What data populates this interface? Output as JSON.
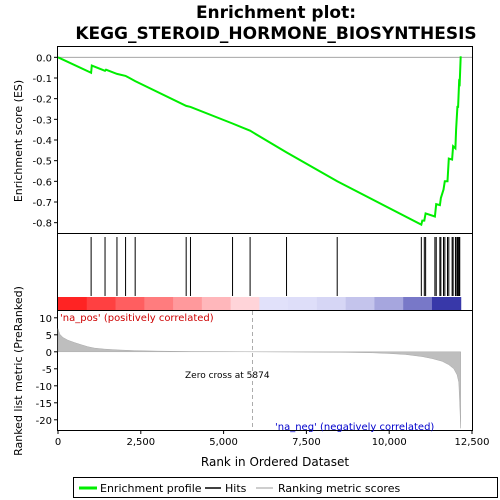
{
  "chart_data": {
    "title": "Enrichment plot:\nKEGG_STEROID_HORMONE_BIOSYNTHESIS",
    "type": "line",
    "panels": {
      "enrichment": {
        "ylabel": "Enrichment score (ES)",
        "ylim": [
          -0.85,
          0.05
        ],
        "yticks": [
          0.0,
          -0.1,
          -0.2,
          -0.3,
          -0.4,
          -0.5,
          -0.6,
          -0.7,
          -0.8
        ],
        "series": [
          {
            "name": "Enrichment profile",
            "color": "#00ee00",
            "x": [
              0,
              1000,
              1020,
              1420,
              1450,
              1780,
              2040,
              2330,
              3870,
              4000,
              5270,
              5800,
              6900,
              8430,
              10970,
              11000,
              11060,
              11100,
              11380,
              11420,
              11530,
              11560,
              11640,
              11680,
              11760,
              11800,
              11900,
              11930,
              12000,
              12020,
              12060,
              12080,
              12110,
              12130,
              12160
            ],
            "y": [
              0.0,
              -0.075,
              -0.04,
              -0.065,
              -0.06,
              -0.08,
              -0.09,
              -0.115,
              -0.235,
              -0.24,
              -0.32,
              -0.355,
              -0.46,
              -0.6,
              -0.81,
              -0.79,
              -0.79,
              -0.755,
              -0.77,
              -0.71,
              -0.715,
              -0.68,
              -0.64,
              -0.6,
              -0.6,
              -0.49,
              -0.495,
              -0.43,
              -0.44,
              -0.35,
              -0.24,
              -0.24,
              -0.12,
              -0.125,
              0.005
            ]
          }
        ]
      },
      "hits": {
        "name": "Hits",
        "positions": [
          1000,
          1420,
          1780,
          2040,
          2330,
          3870,
          4000,
          5270,
          5800,
          6900,
          8430,
          10970,
          11060,
          11100,
          11380,
          11420,
          11530,
          11560,
          11640,
          11680,
          11760,
          11800,
          11900,
          11930,
          12000,
          12020,
          12060,
          12080,
          12110,
          12130
        ]
      },
      "ranking": {
        "name": "Ranking metric scores",
        "ylabel": "Ranked list metric (PreRanked)",
        "xlabel": "Rank in Ordered Dataset",
        "ylim": [
          -23,
          12
        ],
        "yticks": [
          10,
          5,
          0,
          -5,
          -10,
          -15,
          -20
        ],
        "xlim": [
          0,
          12500
        ],
        "xticks": [
          0,
          2500,
          5000,
          7500,
          10000,
          12500
        ],
        "xticklabels": [
          "0",
          "2,500",
          "5,000",
          "7,500",
          "10,000",
          "12,500"
        ],
        "color": "#bebebe",
        "x": [
          0,
          50,
          150,
          300,
          500,
          700,
          900,
          1100,
          1400,
          1800,
          2300,
          3000,
          4000,
          5000,
          5874,
          7000,
          8500,
          9500,
          10000,
          10500,
          11000,
          11300,
          11600,
          11800,
          11950,
          12050,
          12100,
          12130,
          12160
        ],
        "values": [
          6.8,
          5.2,
          4.2,
          3.4,
          2.7,
          2.1,
          1.5,
          1.1,
          0.8,
          0.55,
          0.35,
          0.2,
          0.1,
          0.05,
          0.0,
          -0.05,
          -0.15,
          -0.3,
          -0.5,
          -0.8,
          -1.4,
          -2.0,
          -2.8,
          -3.8,
          -5.0,
          -6.8,
          -9.0,
          -15.0,
          -22.5
        ]
      }
    },
    "annotations": {
      "pos_label": "'na_pos' (positively correlated)",
      "neg_label": "'na_neg' (negatively correlated)",
      "zero_cross_label": "Zero cross at 5874",
      "zero_cross": 5874
    },
    "legend": {
      "placement": "bottom",
      "items": [
        {
          "label": "Enrichment profile",
          "color": "#00ee00"
        },
        {
          "label": "Hits",
          "color": "#000000"
        },
        {
          "label": "Ranking metric scores",
          "color": "#bebebe"
        }
      ]
    },
    "x_total": 12160
  }
}
